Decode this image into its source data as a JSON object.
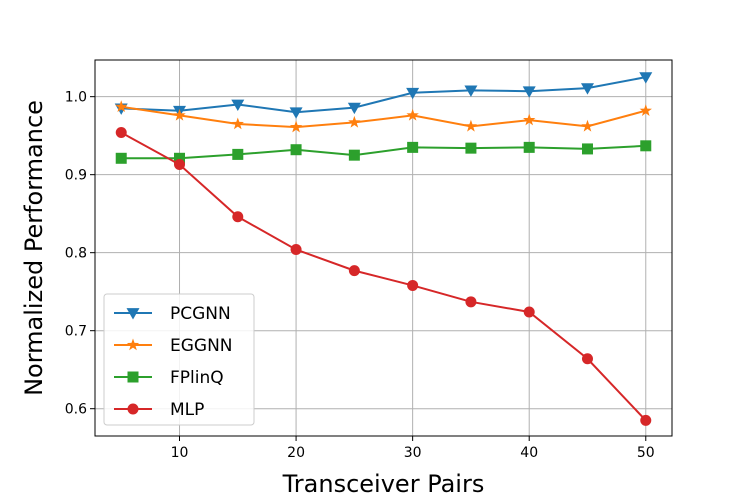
{
  "chart_data": {
    "type": "line",
    "xlabel": "Transceiver Pairs",
    "ylabel": "Normalized Performance",
    "x": [
      5,
      10,
      15,
      20,
      25,
      30,
      35,
      40,
      45,
      50
    ],
    "xlim": [
      2.75,
      52.25
    ],
    "ylim": [
      0.565,
      1.047
    ],
    "xticks": [
      10,
      20,
      30,
      40,
      50
    ],
    "yticks": [
      0.6,
      0.7,
      0.8,
      0.9,
      1.0
    ],
    "xtick_labels": [
      "10",
      "20",
      "30",
      "40",
      "50"
    ],
    "ytick_labels": [
      "0.6",
      "0.7",
      "0.8",
      "0.9",
      "1.0"
    ],
    "grid": true,
    "legend_position": "lower-left",
    "series": [
      {
        "name": "PCGNN",
        "color": "#1f77b4",
        "marker": "triangle-down",
        "values": [
          0.985,
          0.982,
          0.99,
          0.98,
          0.986,
          1.005,
          1.008,
          1.007,
          1.011,
          1.025
        ]
      },
      {
        "name": "EGGNN",
        "color": "#ff7f0e",
        "marker": "star",
        "values": [
          0.987,
          0.976,
          0.965,
          0.961,
          0.967,
          0.976,
          0.962,
          0.97,
          0.962,
          0.982
        ]
      },
      {
        "name": "FPlinQ",
        "color": "#2ca02c",
        "marker": "square",
        "values": [
          0.921,
          0.921,
          0.926,
          0.932,
          0.925,
          0.935,
          0.934,
          0.935,
          0.933,
          0.937
        ]
      },
      {
        "name": "MLP",
        "color": "#d62728",
        "marker": "circle",
        "values": [
          0.954,
          0.913,
          0.846,
          0.804,
          0.777,
          0.758,
          0.737,
          0.724,
          0.664,
          0.585
        ]
      }
    ]
  }
}
